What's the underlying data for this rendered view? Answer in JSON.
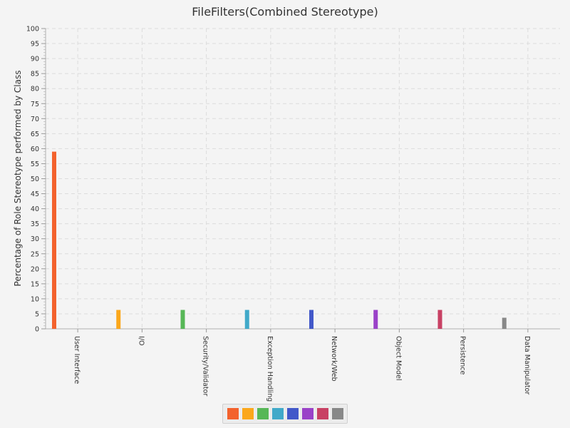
{
  "chart_data": {
    "type": "bar",
    "title": "FileFilters(Combined Stereotype)",
    "ylabel": "Percentage of Role Stereotype performed by Class",
    "xlabel": "",
    "ylim": [
      0,
      100
    ],
    "yticks": [
      "0",
      "5",
      "10",
      "15",
      "20",
      "25",
      "30",
      "35",
      "40",
      "45",
      "50",
      "55",
      "60",
      "65",
      "70",
      "75",
      "80",
      "85",
      "90",
      "95",
      "100"
    ],
    "categories": [
      "User Interface",
      "I/O",
      "Security/Validator",
      "Exception Handling",
      "Network/Web",
      "Object Model",
      "Persistence",
      "Data Manipulator"
    ],
    "values": [
      59,
      6.3,
      6.3,
      6.3,
      6.3,
      6.3,
      6.3,
      3.7
    ],
    "colors": [
      "#f3622d",
      "#fba71b",
      "#57b757",
      "#41a9c9",
      "#4258c9",
      "#9a42c8",
      "#c84164",
      "#888888"
    ],
    "grid": true,
    "legend": "bottom"
  }
}
